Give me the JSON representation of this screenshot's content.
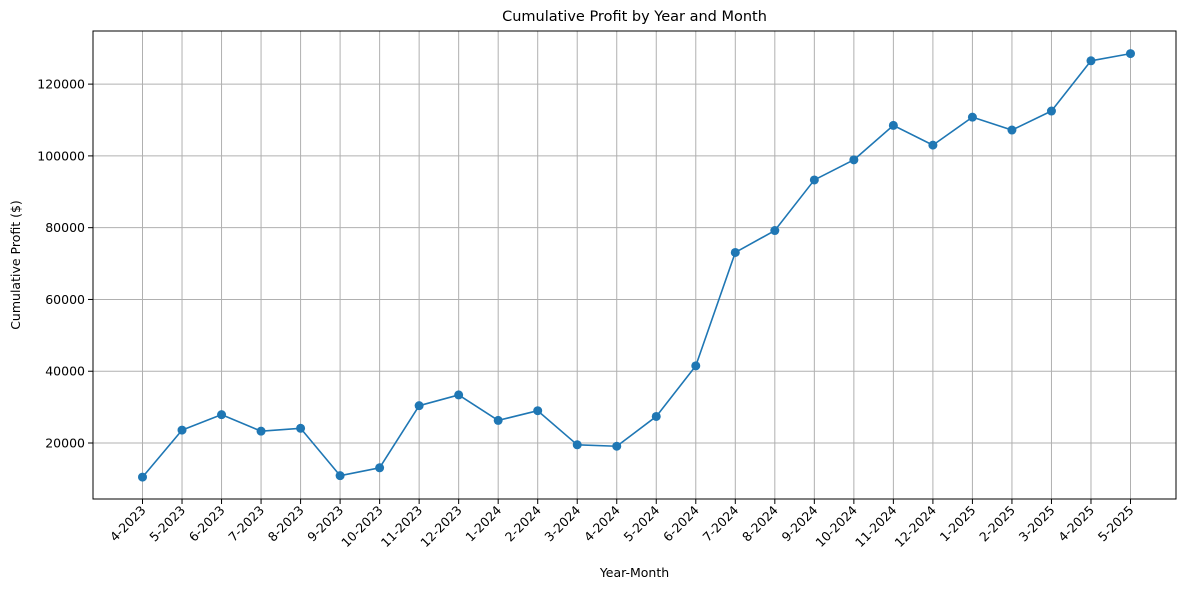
{
  "chart_data": {
    "type": "line",
    "title": "Cumulative Profit by Year and Month",
    "xlabel": "Year-Month",
    "ylabel": "Cumulative Profit ($)",
    "categories": [
      "4-2023",
      "5-2023",
      "6-2023",
      "7-2023",
      "8-2023",
      "9-2023",
      "10-2023",
      "11-2023",
      "12-2023",
      "1-2024",
      "2-2024",
      "3-2024",
      "4-2024",
      "5-2024",
      "6-2024",
      "7-2024",
      "8-2024",
      "9-2024",
      "10-2024",
      "11-2024",
      "12-2024",
      "1-2025",
      "2-2025",
      "3-2025",
      "4-2025",
      "5-2025"
    ],
    "series": [
      {
        "values": [
          10500,
          23600,
          27900,
          23300,
          24100,
          10900,
          13100,
          30400,
          33400,
          26300,
          29000,
          19500,
          19100,
          27400,
          41500,
          73100,
          79200,
          93300,
          98900,
          108500,
          103000,
          110800,
          107200,
          112500,
          126500,
          128500
        ],
        "color": "#1f77b4",
        "marker": "circle"
      }
    ],
    "ylim": [
      4400,
      134800
    ],
    "yticks": [
      20000,
      40000,
      60000,
      80000,
      100000,
      120000
    ],
    "ytick_labels": [
      "20000",
      "40000",
      "60000",
      "80000",
      "100000",
      "120000"
    ],
    "grid": true,
    "x_tick_rotation": 45,
    "colors": {
      "line": "#1f77b4",
      "grid": "#b0b0b0",
      "axis": "#000000"
    }
  }
}
